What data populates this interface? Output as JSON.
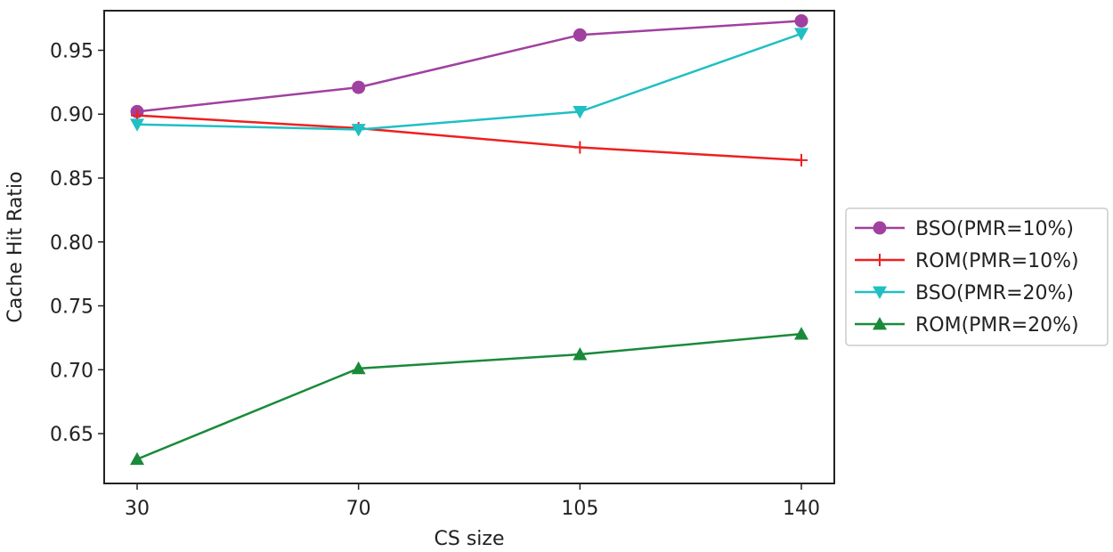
{
  "chart_data": {
    "type": "line",
    "title": "",
    "xlabel": "CS size",
    "ylabel": "Cache Hit Ratio",
    "categories": [
      "30",
      "70",
      "105",
      "140"
    ],
    "ylim": [
      0.611,
      0.981
    ],
    "yticks": [
      "0.65",
      "0.70",
      "0.75",
      "0.80",
      "0.85",
      "0.90",
      "0.95"
    ],
    "grid": false,
    "legend_position": "right-outside",
    "series": [
      {
        "name": "BSO(PMR=10%)",
        "values": [
          0.902,
          0.921,
          0.962,
          0.973
        ],
        "color": "#a040a0",
        "marker": "circle"
      },
      {
        "name": "ROM(PMR=10%)",
        "values": [
          0.899,
          0.889,
          0.874,
          0.864
        ],
        "color": "#ee2020",
        "marker": "plus"
      },
      {
        "name": "BSO(PMR=20%)",
        "values": [
          0.892,
          0.888,
          0.902,
          0.963
        ],
        "color": "#20bfc4",
        "marker": "triangle-down"
      },
      {
        "name": "ROM(PMR=20%)",
        "values": [
          0.63,
          0.701,
          0.712,
          0.728
        ],
        "color": "#1a8a3a",
        "marker": "triangle-up"
      }
    ]
  }
}
